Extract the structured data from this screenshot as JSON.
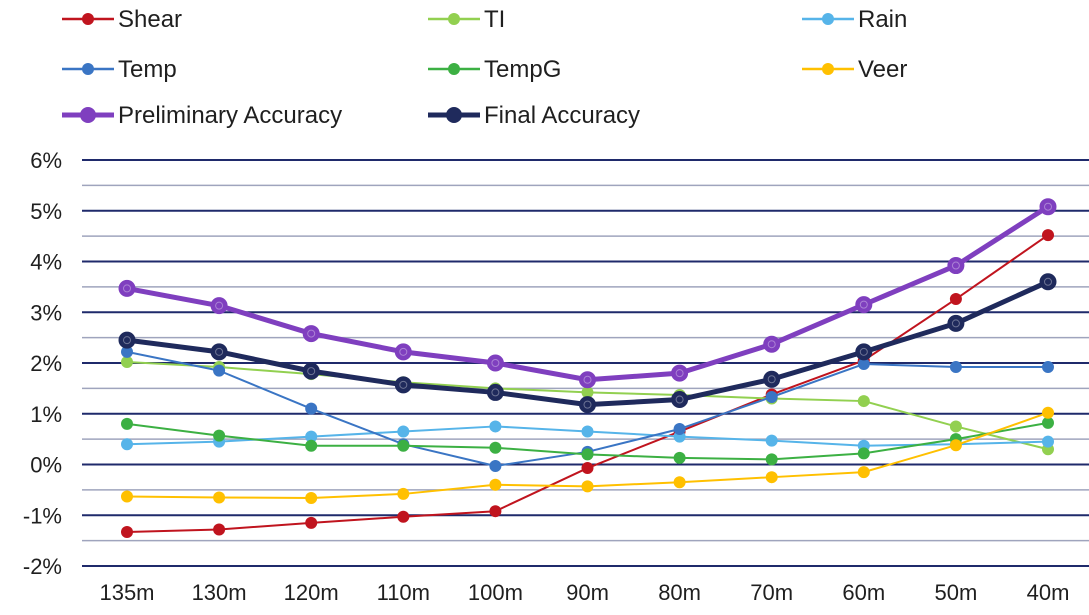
{
  "chart_data": {
    "type": "line",
    "title": "",
    "xlabel": "",
    "ylabel": "",
    "categories": [
      "135m",
      "130m",
      "120m",
      "110m",
      "100m",
      "90m",
      "80m",
      "70m",
      "60m",
      "50m",
      "40m"
    ],
    "ylim": [
      -2,
      6
    ],
    "y_ticks": [
      -2,
      -1,
      0,
      1,
      2,
      3,
      4,
      5,
      6
    ],
    "y_tick_labels": [
      "-2%",
      "-1%",
      "0%",
      "1%",
      "2%",
      "3%",
      "4%",
      "5%",
      "6%"
    ],
    "grid": true,
    "legend_placement": "top",
    "series": [
      {
        "name": "Shear",
        "color": "#c0141e",
        "emphasis": false,
        "values": [
          -1.33,
          -1.28,
          -1.15,
          -1.03,
          -0.92,
          -0.07,
          0.65,
          1.38,
          2.05,
          3.26,
          4.52
        ]
      },
      {
        "name": "TI",
        "color": "#92d050",
        "emphasis": false,
        "values": [
          2.02,
          1.92,
          1.78,
          1.62,
          1.5,
          1.42,
          1.37,
          1.3,
          1.25,
          0.75,
          0.3
        ]
      },
      {
        "name": "Rain",
        "color": "#56b4e9",
        "emphasis": false,
        "values": [
          0.4,
          0.45,
          0.55,
          0.65,
          0.75,
          0.65,
          0.55,
          0.47,
          0.37,
          0.4,
          0.45
        ]
      },
      {
        "name": "Temp",
        "color": "#3a75c4",
        "emphasis": false,
        "values": [
          2.22,
          1.85,
          1.1,
          0.4,
          -0.03,
          0.25,
          0.7,
          1.33,
          1.98,
          1.92,
          1.92
        ]
      },
      {
        "name": "TempG",
        "color": "#3cb043",
        "emphasis": false,
        "values": [
          0.8,
          0.57,
          0.37,
          0.37,
          0.33,
          0.2,
          0.13,
          0.1,
          0.22,
          0.5,
          0.82
        ]
      },
      {
        "name": "Veer",
        "color": "#ffc000",
        "emphasis": false,
        "values": [
          -0.63,
          -0.65,
          -0.66,
          -0.58,
          -0.4,
          -0.43,
          -0.35,
          -0.25,
          -0.15,
          0.38,
          1.02
        ]
      },
      {
        "name": "Preliminary Accuracy",
        "color": "#7f3fbf",
        "emphasis": true,
        "values": [
          3.47,
          3.13,
          2.58,
          2.22,
          2.0,
          1.67,
          1.8,
          2.37,
          3.15,
          3.92,
          5.08
        ]
      },
      {
        "name": "Final Accuracy",
        "color": "#1f2a5c",
        "emphasis": true,
        "values": [
          2.45,
          2.22,
          1.84,
          1.57,
          1.42,
          1.18,
          1.28,
          1.68,
          2.22,
          2.78,
          3.6
        ]
      }
    ],
    "gridline_color": "#1f2a6b",
    "minor_gridline_color": "#9fa4bd"
  }
}
